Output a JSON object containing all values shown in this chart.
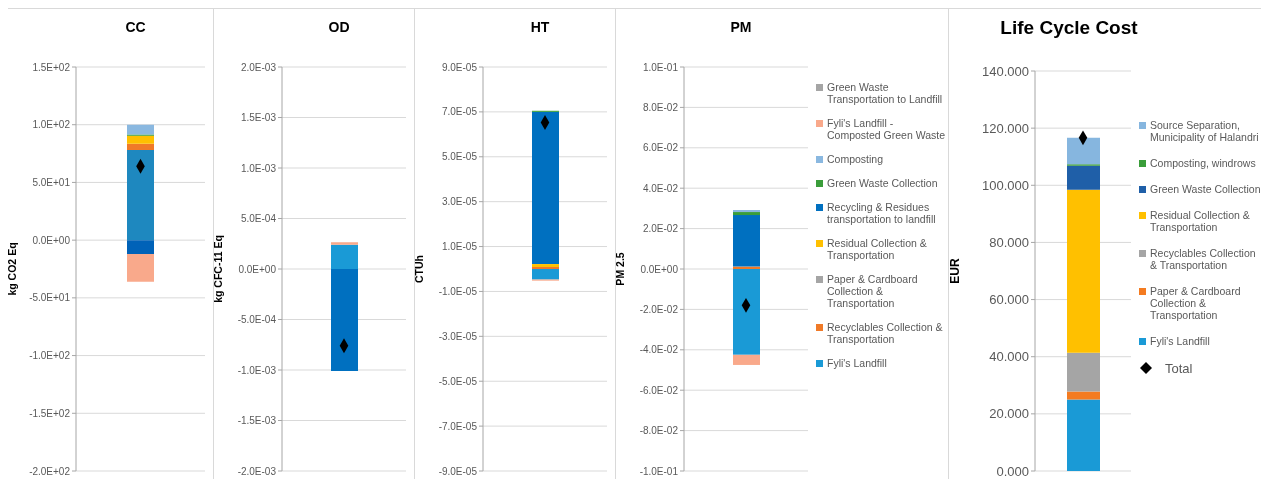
{
  "chart_data": [
    {
      "type": "bar",
      "stacked": true,
      "title": "CC",
      "ylabel": "kg CO2 Eq",
      "categories": [
        null
      ],
      "ylim": [
        -200,
        150
      ],
      "yticks": [
        {
          "value": -200,
          "label": "-2.0E+02"
        },
        {
          "value": -150,
          "label": "-1.5E+02"
        },
        {
          "value": -100,
          "label": "-1.0E+02"
        },
        {
          "value": -50,
          "label": "-5.0E+01"
        },
        {
          "value": 0,
          "label": "0.0E+00"
        },
        {
          "value": 50,
          "label": "5.0E+01"
        },
        {
          "value": 100,
          "label": "1.0E+02"
        },
        {
          "value": 150,
          "label": "1.5E+02"
        }
      ],
      "grid": "y",
      "tick_labels": "y",
      "marker": "diamond",
      "series": [
        {
          "color": "#1e88bf",
          "values": [
            78
          ]
        },
        {
          "color": "#f07a28",
          "values": [
            5.5
          ]
        },
        {
          "color": "#ffc000",
          "values": [
            7
          ]
        },
        {
          "color": "#0062b8",
          "values": [
            -12
          ]
        },
        {
          "color": "#3a9d3a",
          "values": [
            1
          ]
        },
        {
          "color": "#8ab8e0",
          "values": [
            8.5
          ]
        },
        {
          "color": "#f9a98b",
          "values": [
            -24
          ]
        },
        {
          "type": "scatter",
          "color": "#000000",
          "values": [
            64
          ]
        }
      ]
    },
    {
      "type": "bar",
      "stacked": true,
      "title": "OD",
      "ylabel": "kg CFC-11 Eq",
      "categories": [
        null
      ],
      "ylim": [
        -0.002,
        0.002
      ],
      "yticks": [
        {
          "value": -0.002,
          "label": "-2.0E-03"
        },
        {
          "value": -0.0015,
          "label": "-1.5E-03"
        },
        {
          "value": -0.001,
          "label": "-1.0E-03"
        },
        {
          "value": -0.0005,
          "label": "-5.0E-04"
        },
        {
          "value": 0,
          "label": "0.0E+00"
        },
        {
          "value": 0.0005,
          "label": "5.0E-04"
        },
        {
          "value": 0.001,
          "label": "1.0E-03"
        },
        {
          "value": 0.0015,
          "label": "1.5E-03"
        },
        {
          "value": 0.002,
          "label": "2.0E-03"
        }
      ],
      "grid": "y",
      "tick_labels": "y",
      "marker": "diamond",
      "series": [
        {
          "color": "#1a9ad6",
          "values": [
            0.00024
          ]
        },
        {
          "color": "#0070c0",
          "values": [
            -0.00101
          ]
        },
        {
          "color": "#f9a98b",
          "values": [
            2.5e-05
          ]
        },
        {
          "type": "scatter",
          "color": "#000000",
          "values": [
            -0.00076
          ]
        }
      ]
    },
    {
      "type": "bar",
      "stacked": true,
      "title": "HT",
      "ylabel": "CTUh",
      "categories": [
        null
      ],
      "ylim": [
        -9e-05,
        9e-05
      ],
      "yticks": [
        {
          "value": -9e-05,
          "label": "-9.0E-05"
        },
        {
          "value": -7e-05,
          "label": "-7.0E-05"
        },
        {
          "value": -5e-05,
          "label": "-5.0E-05"
        },
        {
          "value": -3e-05,
          "label": "-3.0E-05"
        },
        {
          "value": -1e-05,
          "label": "-1.0E-05"
        },
        {
          "value": 1e-05,
          "label": "1.0E-05"
        },
        {
          "value": 3e-05,
          "label": "3.0E-05"
        },
        {
          "value": 5e-05,
          "label": "5.0E-05"
        },
        {
          "value": 7e-05,
          "label": "7.0E-05"
        },
        {
          "value": 9e-05,
          "label": "9.0E-05"
        }
      ],
      "grid": "y",
      "tick_labels": "y",
      "marker": "diamond",
      "series": [
        {
          "color": "#1a9ad6",
          "values": [
            -4.7e-06
          ]
        },
        {
          "color": "#f07a28",
          "values": [
            9e-07
          ]
        },
        {
          "color": "#ffc000",
          "values": [
            1.3e-06
          ]
        },
        {
          "color": "#0070c0",
          "values": [
            6.78e-05
          ]
        },
        {
          "color": "#3a9d3a",
          "values": [
            5e-07
          ]
        },
        {
          "color": "#f9a98b",
          "values": [
            -5e-07
          ]
        },
        {
          "type": "scatter",
          "color": "#000000",
          "values": [
            6.53e-05
          ]
        }
      ]
    },
    {
      "type": "bar",
      "stacked": true,
      "title": "PM",
      "ylabel": "PM 2.5",
      "categories": [
        null
      ],
      "ylim": [
        -0.1,
        0.1
      ],
      "yticks": [
        {
          "value": -0.1,
          "label": "-1.0E-01"
        },
        {
          "value": -0.08,
          "label": "-8.0E-02"
        },
        {
          "value": -0.06,
          "label": "-6.0E-02"
        },
        {
          "value": -0.04,
          "label": "-4.0E-02"
        },
        {
          "value": -0.02,
          "label": "-2.0E-02"
        },
        {
          "value": 0,
          "label": "0.0E+00"
        },
        {
          "value": 0.02,
          "label": "2.0E-02"
        },
        {
          "value": 0.04,
          "label": "4.0E-02"
        },
        {
          "value": 0.06,
          "label": "6.0E-02"
        },
        {
          "value": 0.08,
          "label": "8.0E-02"
        },
        {
          "value": 0.1,
          "label": "1.0E-01"
        }
      ],
      "grid": "y",
      "tick_labels": "y",
      "marker": "diamond",
      "legend": "right",
      "series": [
        {
          "name": "Fyli's Landfill",
          "color": "#1a9ad6",
          "values": [
            -0.0425
          ]
        },
        {
          "name": "Recyclables Collection & Transportation",
          "color": "#f07a28",
          "values": [
            0.0012
          ]
        },
        {
          "name": "Paper & Cardboard Collection & Transportation",
          "color": "#a5a5a5",
          "values": [
            null
          ]
        },
        {
          "name": "Residual Collection & Transportation",
          "color": "#ffc000",
          "values": [
            null
          ]
        },
        {
          "name": "Recycling & Residues transportation to landfill",
          "color": "#0070c0",
          "values": [
            0.0255
          ]
        },
        {
          "name": "Green Waste Collection",
          "color": "#3a9d3a",
          "values": [
            0.0015
          ]
        },
        {
          "name": "Composting",
          "color": "#8ab8e0",
          "values": [
            0.001
          ]
        },
        {
          "name": "Fyli's Landfill - Composted Green Waste",
          "color": "#f9a98b",
          "values": [
            -0.005
          ]
        },
        {
          "name": "Green Waste Transportation to Landfill",
          "color": "#a5a5a5",
          "values": [
            null
          ]
        },
        {
          "type": "scatter",
          "color": "#000000",
          "values": [
            -0.018
          ]
        }
      ]
    },
    {
      "type": "bar",
      "stacked": true,
      "title": "Life Cycle Cost",
      "ylabel": "EUR",
      "categories": [
        null
      ],
      "ylim": [
        0,
        140
      ],
      "yticks": [
        {
          "value": 0,
          "label": "0.000"
        },
        {
          "value": 20,
          "label": "20.000"
        },
        {
          "value": 40,
          "label": "40.000"
        },
        {
          "value": 60,
          "label": "60.000"
        },
        {
          "value": 80,
          "label": "80.000"
        },
        {
          "value": 100,
          "label": "100.000"
        },
        {
          "value": 120,
          "label": "120.000"
        },
        {
          "value": 140,
          "label": "140.000"
        }
      ],
      "grid": "y",
      "tick_labels": "y",
      "marker": "diamond",
      "legend": "right",
      "series": [
        {
          "name": "Fyli's Landfill",
          "color": "#1a9ad6",
          "values": [
            25
          ]
        },
        {
          "name": "Paper & Cardboard Collection & Transportation",
          "color": "#f47b20",
          "values": [
            2.8
          ]
        },
        {
          "name": "Recyclables Collection & Transportation",
          "color": "#a5a5a5",
          "values": [
            13.6
          ]
        },
        {
          "name": "Residual Collection & Transportation",
          "color": "#ffc000",
          "values": [
            57
          ]
        },
        {
          "name": "Green Waste Collection",
          "color": "#1f5fa8",
          "values": [
            8.4
          ]
        },
        {
          "name": "Composting, windrows",
          "color": "#3a9d3a",
          "values": [
            0.6
          ]
        },
        {
          "name": "Source Separation, Municipality of Halandri",
          "color": "#86b6df",
          "values": [
            9.2
          ]
        },
        {
          "type": "scatter",
          "name": "Total",
          "color": "#000000",
          "values": [
            116.6
          ]
        }
      ]
    }
  ]
}
